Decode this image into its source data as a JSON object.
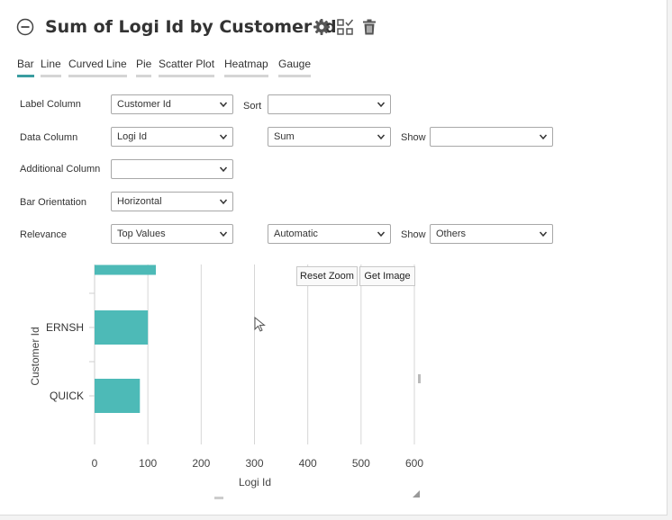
{
  "header": {
    "title": "Sum of Logi Id by Customer Id",
    "icons": [
      "collapse-icon",
      "gear-icon",
      "grid-check-icon",
      "trash-icon"
    ]
  },
  "tabs": [
    "Bar",
    "Line",
    "Curved Line",
    "Pie",
    "Scatter Plot",
    "Heatmap",
    "Gauge"
  ],
  "active_tab": "Bar",
  "form": {
    "label_column": {
      "label": "Label Column",
      "value": "Customer Id"
    },
    "sort": {
      "label": "Sort",
      "value": ""
    },
    "data_column": {
      "label": "Data Column",
      "value": "Logi Id"
    },
    "aggregate": {
      "value": "Sum"
    },
    "show1": {
      "label": "Show",
      "value": ""
    },
    "additional_column": {
      "label": "Additional Column",
      "value": ""
    },
    "bar_orientation": {
      "label": "Bar Orientation",
      "value": "Horizontal"
    },
    "relevance": {
      "label": "Relevance",
      "value": "Top Values"
    },
    "mode": {
      "value": "Automatic"
    },
    "show2": {
      "label": "Show",
      "value": "Others"
    }
  },
  "chart_buttons": {
    "reset_zoom": "Reset Zoom",
    "get_image": "Get Image"
  },
  "colors": {
    "accent": "#3a9da0",
    "bar": "#4dbab7"
  },
  "chart_data": {
    "type": "bar",
    "orientation": "horizontal",
    "categories": [
      "",
      "ERNSH",
      "QUICK"
    ],
    "values": [
      115,
      100,
      85
    ],
    "xlabel": "Logi Id",
    "ylabel": "Customer Id",
    "xlim": [
      0,
      600
    ],
    "xticks": [
      "0",
      "100",
      "200",
      "300",
      "400",
      "500",
      "600"
    ],
    "grid": true,
    "legend": "none"
  }
}
